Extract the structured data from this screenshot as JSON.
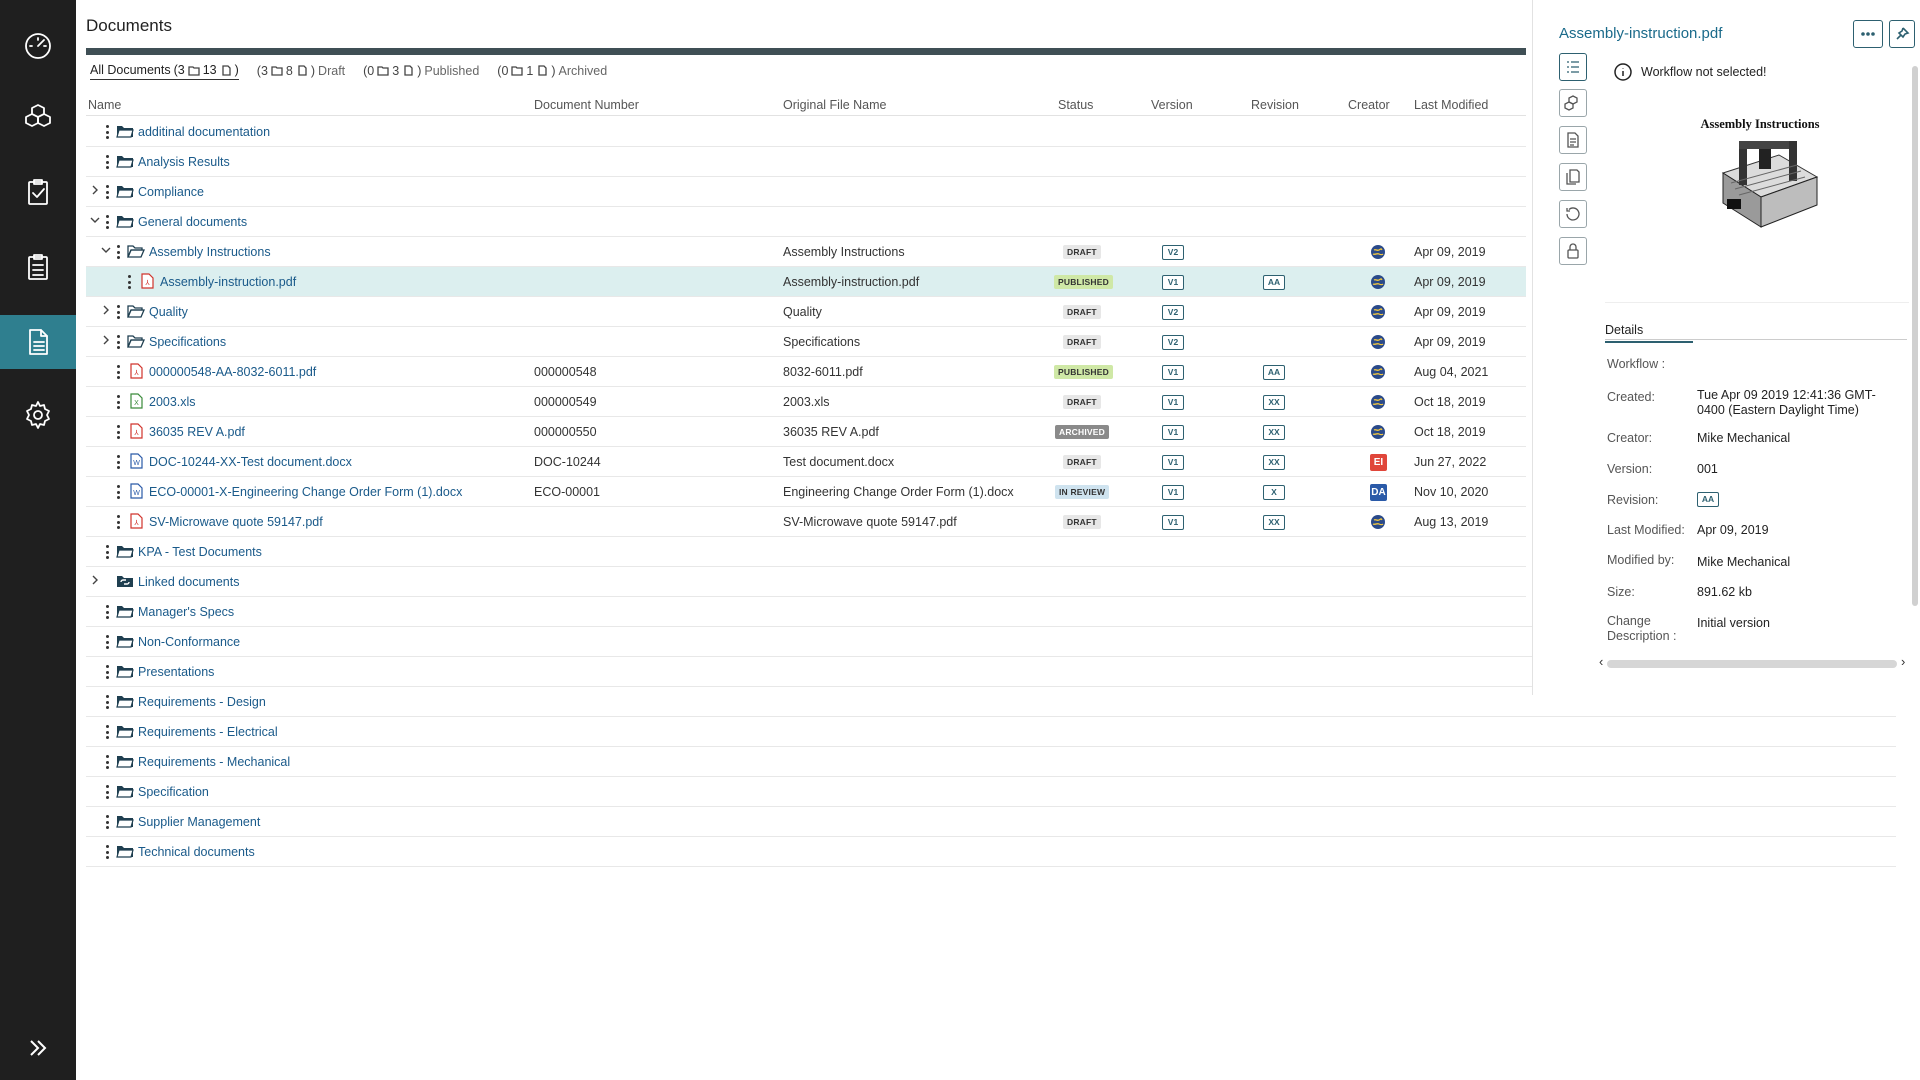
{
  "nav": {
    "items": [
      {
        "name": "dashboard-icon"
      },
      {
        "name": "cubes-icon"
      },
      {
        "name": "checklist-icon"
      },
      {
        "name": "clipboard-icon"
      },
      {
        "name": "document-icon",
        "active": true
      },
      {
        "name": "gear-icon"
      }
    ],
    "expand_icon": "double-chevron-right-icon"
  },
  "page": {
    "title": "Documents"
  },
  "filters": [
    {
      "label": "All Documents",
      "prefix": "(3",
      "mid": "13",
      "suffix": ")",
      "active": true
    },
    {
      "label": "Draft",
      "prefix": "(3",
      "mid": "8",
      "suffix": ")",
      "active": false
    },
    {
      "label": "Published",
      "prefix": "(0",
      "mid": "3",
      "suffix": ")",
      "active": false
    },
    {
      "label": "Archived",
      "prefix": "(0",
      "mid": "1",
      "suffix": ")",
      "active": false
    }
  ],
  "columns": {
    "name": "Name",
    "doc_number": "Document Number",
    "orig_name": "Original File Name",
    "status": "Status",
    "version": "Version",
    "revision": "Revision",
    "creator": "Creator",
    "modified": "Last Modified"
  },
  "rows": [
    {
      "name": "additinal documentation",
      "type": "folder",
      "level": 0,
      "chevron": "none"
    },
    {
      "name": "Analysis Results",
      "type": "folder",
      "level": 0,
      "chevron": "none"
    },
    {
      "name": "Compliance",
      "type": "folder",
      "level": 0,
      "chevron": "right"
    },
    {
      "name": "General documents",
      "type": "folder",
      "level": 0,
      "chevron": "down"
    },
    {
      "name": "Assembly Instructions",
      "type": "folder-open",
      "level": 1,
      "chevron": "down",
      "orig": "Assembly Instructions",
      "status": "DRAFT",
      "version": "V2",
      "creator": "globe",
      "modified": "Apr 09, 2019"
    },
    {
      "name": "Assembly-instruction.pdf",
      "type": "pdf",
      "level": 2,
      "chevron": "none",
      "orig": "Assembly-instruction.pdf",
      "status": "PUBLISHED",
      "version": "V1",
      "revision": "AA",
      "creator": "globe",
      "modified": "Apr 09, 2019",
      "selected": true
    },
    {
      "name": "Quality",
      "type": "folder-open",
      "level": 1,
      "chevron": "right",
      "orig": "Quality",
      "status": "DRAFT",
      "version": "V2",
      "creator": "globe",
      "modified": "Apr 09, 2019"
    },
    {
      "name": "Specifications",
      "type": "folder-open",
      "level": 1,
      "chevron": "right",
      "orig": "Specifications",
      "status": "DRAFT",
      "version": "V2",
      "creator": "globe",
      "modified": "Apr 09, 2019"
    },
    {
      "name": "000000548-AA-8032-6011.pdf",
      "type": "pdf",
      "level": 1,
      "chevron": "none",
      "number": "000000548",
      "orig": "8032-6011.pdf",
      "status": "PUBLISHED",
      "version": "V1",
      "revision": "AA",
      "creator": "globe",
      "modified": "Aug 04, 2021"
    },
    {
      "name": "2003.xls",
      "type": "xls",
      "level": 1,
      "chevron": "none",
      "number": "000000549",
      "orig": "2003.xls",
      "status": "DRAFT",
      "version": "V1",
      "revision": "XX",
      "creator": "globe",
      "modified": "Oct 18, 2019"
    },
    {
      "name": "36035 REV A.pdf",
      "type": "pdf",
      "level": 1,
      "chevron": "none",
      "number": "000000550",
      "orig": "36035 REV A.pdf",
      "status": "ARCHIVED",
      "version": "V1",
      "revision": "XX",
      "creator": "globe",
      "modified": "Oct 18, 2019"
    },
    {
      "name": "DOC-10244-XX-Test document.docx",
      "type": "doc",
      "level": 1,
      "chevron": "none",
      "number": "DOC-10244",
      "orig": "Test document.docx",
      "status": "DRAFT",
      "version": "V1",
      "revision": "XX",
      "creator": "EI",
      "creator_color": "#e0463a",
      "modified": "Jun 27, 2022"
    },
    {
      "name": "ECO-00001-X-Engineering Change Order Form (1).docx",
      "type": "doc",
      "level": 1,
      "chevron": "none",
      "number": "ECO-00001",
      "orig": "Engineering Change Order Form (1).docx",
      "status": "IN REVIEW",
      "version": "V1",
      "revision": "X",
      "creator": "DA",
      "creator_color": "#2a5aa8",
      "modified": "Nov 10, 2020"
    },
    {
      "name": "SV-Microwave quote 59147.pdf",
      "type": "pdf",
      "level": 1,
      "chevron": "none",
      "orig": "SV-Microwave quote 59147.pdf",
      "status": "DRAFT",
      "version": "V1",
      "revision": "XX",
      "creator": "globe",
      "modified": "Aug 13, 2019"
    },
    {
      "name": "KPA - Test Documents",
      "type": "folder",
      "level": 0,
      "chevron": "none"
    },
    {
      "name": "Linked documents",
      "type": "linked",
      "level": 0,
      "chevron": "right",
      "nokebab": true
    },
    {
      "name": "Manager's Specs",
      "type": "folder",
      "level": 0,
      "chevron": "none"
    },
    {
      "name": "Non-Conformance",
      "type": "folder",
      "level": 0,
      "chevron": "none"
    },
    {
      "name": "Presentations",
      "type": "folder",
      "level": 0,
      "chevron": "none"
    },
    {
      "name": "Requirements - Design",
      "type": "folder",
      "level": 0,
      "chevron": "none"
    },
    {
      "name": "Requirements - Electrical",
      "type": "folder",
      "level": 0,
      "chevron": "none"
    },
    {
      "name": "Requirements - Mechanical",
      "type": "folder",
      "level": 0,
      "chevron": "none"
    },
    {
      "name": "Specification",
      "type": "folder",
      "level": 0,
      "chevron": "none"
    },
    {
      "name": "Supplier Management",
      "type": "folder",
      "level": 0,
      "chevron": "none"
    },
    {
      "name": "Technical documents",
      "type": "folder",
      "level": 0,
      "chevron": "none"
    }
  ],
  "panel": {
    "title": "Assembly-instruction.pdf",
    "workflow_message": "Workflow not selected!",
    "preview_title": "Assembly Instructions",
    "details_tab": "Details",
    "details": {
      "workflow_label": "Workflow :",
      "created_label": "Created:",
      "created_value_1": "Tue Apr 09 2019 12:41:36 GMT-",
      "created_value_2": "0400 (Eastern Daylight Time)",
      "creator_label": "Creator:",
      "creator_value": "Mike Mechanical",
      "version_label": "Version:",
      "version_value": "001",
      "revision_label": "Revision:",
      "revision_value": "AA",
      "modified_label": "Last Modified:",
      "modified_value": "Apr 09, 2019",
      "modified_by_label": "Modified by:",
      "modified_by_value": "Mike Mechanical",
      "size_label": "Size:",
      "size_value": "891.62 kb",
      "change_label_1": "Change",
      "change_label_2": "Description :",
      "change_value": "Initial version"
    }
  }
}
